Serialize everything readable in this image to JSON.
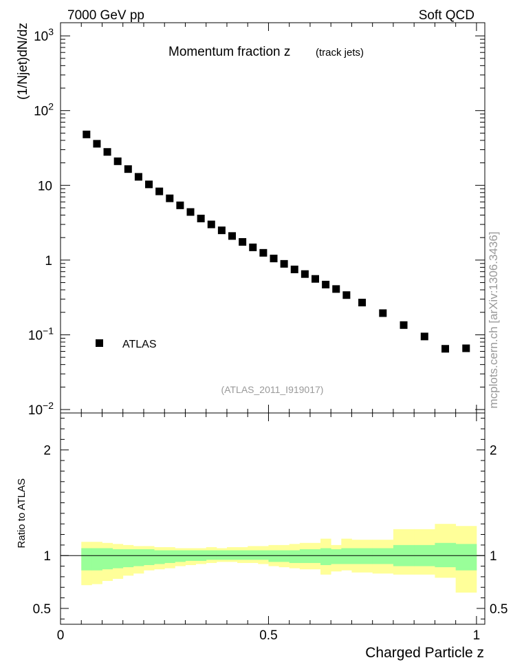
{
  "header": {
    "left": "7000 GeV pp",
    "right": "Soft QCD"
  },
  "plot": {
    "title": "Momentum fraction z",
    "title_sub": "(track jets)",
    "ylabel": "(1/Njet)dN/dz",
    "ratio_ylabel": "Ratio to ATLAS",
    "xlabel": "Charged Particle z",
    "analysis_tag": "(ATLAS_2011_I919017)",
    "watermark": "mcplots.cern.ch [arXiv:1306.3436]",
    "legend": [
      {
        "label": "ATLAS",
        "marker": "square"
      }
    ]
  },
  "colors": {
    "band_inner": "#99ff99",
    "band_outer": "#ffff99",
    "data": "#000000",
    "muted": "#999999"
  },
  "chart_data": [
    {
      "type": "scatter",
      "name": "main",
      "yscale": "log",
      "xlim": [
        0,
        1.02
      ],
      "ylim": [
        0.009,
        1500
      ],
      "yticks": [
        {
          "v": 0.01,
          "m": "10",
          "e": "−2"
        },
        {
          "v": 0.1,
          "m": "10",
          "e": "−1"
        },
        {
          "v": 1,
          "m": "1",
          "e": ""
        },
        {
          "v": 10,
          "m": "10",
          "e": ""
        },
        {
          "v": 100,
          "m": "10",
          "e": "2"
        },
        {
          "v": 1000,
          "m": "10",
          "e": "3"
        }
      ],
      "legend_position": "lower-left",
      "series": [
        {
          "name": "ATLAS",
          "x": [
            0.0625,
            0.0875,
            0.1125,
            0.1375,
            0.1625,
            0.1875,
            0.2125,
            0.2375,
            0.2625,
            0.2875,
            0.3125,
            0.3375,
            0.3625,
            0.3875,
            0.4125,
            0.4375,
            0.4625,
            0.4875,
            0.5125,
            0.5375,
            0.5625,
            0.5875,
            0.6125,
            0.6375,
            0.6625,
            0.6875,
            0.725,
            0.775,
            0.825,
            0.875,
            0.925,
            0.975
          ],
          "y": [
            48,
            36,
            28,
            21,
            16.5,
            13,
            10.3,
            8.3,
            6.7,
            5.4,
            4.4,
            3.6,
            3.0,
            2.5,
            2.1,
            1.75,
            1.48,
            1.25,
            1.05,
            0.89,
            0.75,
            0.65,
            0.56,
            0.47,
            0.41,
            0.34,
            0.27,
            0.195,
            0.135,
            0.095,
            0.065,
            0.066
          ]
        }
      ]
    },
    {
      "type": "area",
      "name": "ratio",
      "ylabel": "Ratio to ATLAS",
      "xlabel": "Charged Particle z",
      "xlim": [
        0,
        1.02
      ],
      "ylim": [
        0.35,
        2.35
      ],
      "xticks": [
        {
          "v": 0,
          "label": "0"
        },
        {
          "v": 0.5,
          "label": "0.5"
        },
        {
          "v": 1,
          "label": "1"
        }
      ],
      "yticks": [
        {
          "v": 0.5,
          "label": "0.5"
        },
        {
          "v": 1,
          "label": "1"
        },
        {
          "v": 2,
          "label": "2"
        }
      ],
      "reference_line": 1,
      "bins": [
        0.05,
        0.075,
        0.1,
        0.125,
        0.15,
        0.175,
        0.2,
        0.225,
        0.25,
        0.275,
        0.3,
        0.325,
        0.35,
        0.375,
        0.4,
        0.425,
        0.45,
        0.475,
        0.5,
        0.525,
        0.55,
        0.575,
        0.6,
        0.625,
        0.65,
        0.675,
        0.7,
        0.75,
        0.8,
        0.85,
        0.9,
        0.95,
        1.0
      ],
      "bands": [
        {
          "name": "outer",
          "upper": [
            1.13,
            1.13,
            1.12,
            1.11,
            1.1,
            1.09,
            1.09,
            1.08,
            1.08,
            1.07,
            1.07,
            1.07,
            1.08,
            1.07,
            1.08,
            1.08,
            1.09,
            1.09,
            1.1,
            1.1,
            1.11,
            1.12,
            1.12,
            1.16,
            1.1,
            1.16,
            1.15,
            1.15,
            1.25,
            1.25,
            1.3,
            1.28
          ],
          "lower": [
            0.72,
            0.73,
            0.76,
            0.78,
            0.81,
            0.83,
            0.86,
            0.87,
            0.88,
            0.9,
            0.91,
            0.92,
            0.93,
            0.94,
            0.94,
            0.93,
            0.93,
            0.92,
            0.9,
            0.89,
            0.88,
            0.87,
            0.87,
            0.82,
            0.85,
            0.86,
            0.84,
            0.83,
            0.82,
            0.82,
            0.79,
            0.65
          ]
        },
        {
          "name": "inner",
          "upper": [
            1.07,
            1.07,
            1.07,
            1.06,
            1.06,
            1.06,
            1.06,
            1.05,
            1.05,
            1.05,
            1.05,
            1.05,
            1.05,
            1.05,
            1.05,
            1.05,
            1.05,
            1.05,
            1.05,
            1.05,
            1.05,
            1.06,
            1.06,
            1.07,
            1.06,
            1.07,
            1.07,
            1.07,
            1.1,
            1.1,
            1.12,
            1.11
          ],
          "lower": [
            0.86,
            0.86,
            0.87,
            0.88,
            0.89,
            0.9,
            0.91,
            0.92,
            0.93,
            0.94,
            0.95,
            0.95,
            0.96,
            0.96,
            0.96,
            0.96,
            0.96,
            0.96,
            0.94,
            0.94,
            0.93,
            0.93,
            0.93,
            0.91,
            0.92,
            0.92,
            0.92,
            0.92,
            0.9,
            0.9,
            0.89,
            0.86
          ]
        }
      ]
    }
  ]
}
